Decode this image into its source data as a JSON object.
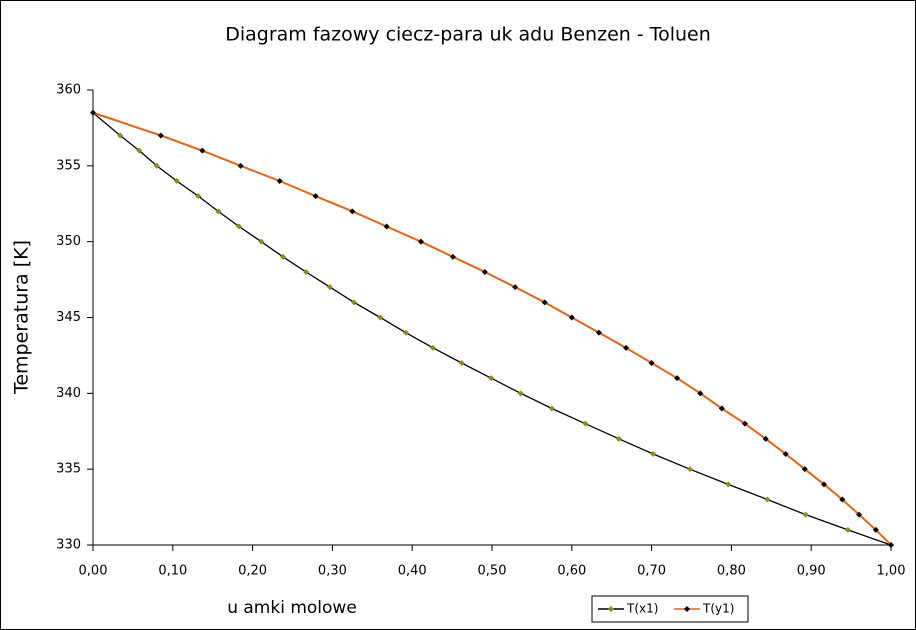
{
  "chart_data": {
    "type": "line",
    "title": "Diagram fazowy ciecz-para uk adu Benzen - Toluen",
    "xlabel": "u amki molowe",
    "ylabel": "Temperatura [K]",
    "xlim": [
      0,
      1
    ],
    "ylim": [
      330,
      360
    ],
    "xticks": [
      {
        "value": 0,
        "label": "0,00"
      },
      {
        "value": 0.1,
        "label": "0,10"
      },
      {
        "value": 0.2,
        "label": "0,20"
      },
      {
        "value": 0.3,
        "label": "0,30"
      },
      {
        "value": 0.4,
        "label": "0,40"
      },
      {
        "value": 0.5,
        "label": "0,50"
      },
      {
        "value": 0.6,
        "label": "0,60"
      },
      {
        "value": 0.7,
        "label": "0,70"
      },
      {
        "value": 0.8,
        "label": "0,80"
      },
      {
        "value": 0.9,
        "label": "0,90"
      },
      {
        "value": 1,
        "label": "1,00"
      }
    ],
    "yticks": [
      330,
      335,
      340,
      345,
      350,
      355,
      360
    ],
    "legend": "bottom-right",
    "series": [
      {
        "name": "T(x1)",
        "color": "#000000",
        "marker_color": "#8c8c1e",
        "x": [
          0,
          0.034,
          0.058,
          0.08,
          0.105,
          0.132,
          0.157,
          0.183,
          0.211,
          0.238,
          0.267,
          0.297,
          0.327,
          0.36,
          0.392,
          0.426,
          0.462,
          0.499,
          0.536,
          0.575,
          0.617,
          0.659,
          0.702,
          0.748,
          0.796,
          0.845,
          0.893,
          0.946,
          1.0
        ],
        "values": [
          358.5,
          357,
          356,
          355,
          354,
          353,
          352,
          351,
          350,
          349,
          348,
          347,
          346,
          345,
          344,
          343,
          342,
          341,
          340,
          339,
          338,
          337,
          336,
          335,
          334,
          333,
          332,
          331,
          330
        ]
      },
      {
        "name": "T(y1)",
        "color": "#e0651a",
        "marker_color": "#000000",
        "x": [
          0,
          0.085,
          0.137,
          0.185,
          0.234,
          0.279,
          0.325,
          0.368,
          0.411,
          0.451,
          0.491,
          0.529,
          0.566,
          0.6,
          0.634,
          0.668,
          0.7,
          0.732,
          0.761,
          0.788,
          0.817,
          0.843,
          0.868,
          0.892,
          0.916,
          0.939,
          0.96,
          0.981,
          1.0
        ],
        "values": [
          358.5,
          357,
          356,
          355,
          354,
          353,
          352,
          351,
          350,
          349,
          348,
          347,
          346,
          345,
          344,
          343,
          342,
          341,
          340,
          339,
          338,
          337,
          336,
          335,
          334,
          333,
          332,
          331,
          330
        ]
      }
    ]
  }
}
